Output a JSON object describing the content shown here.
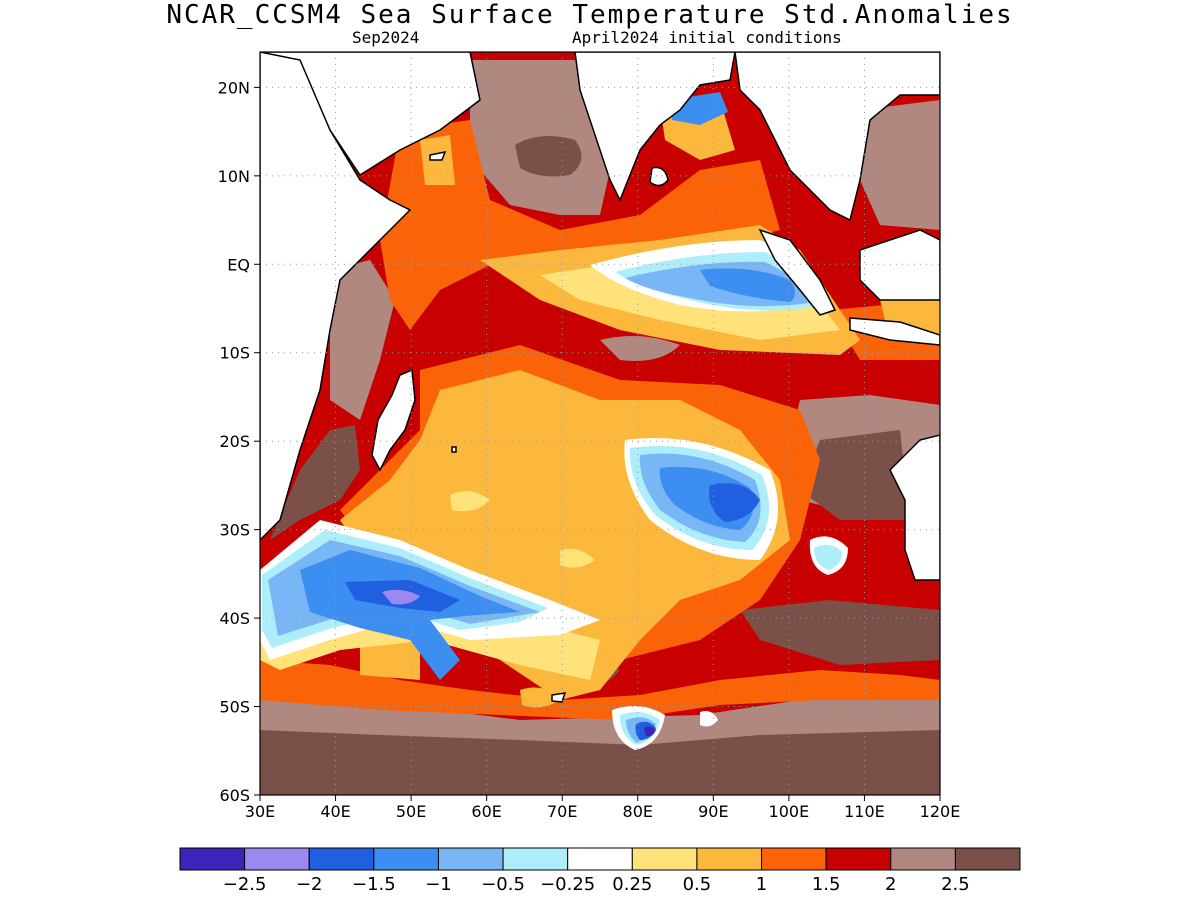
{
  "header": {
    "title": "NCAR_CCSM4 Sea Surface Temperature Std.Anomalies",
    "valid_month": "Sep2024",
    "init_conditions": "April2024 initial conditions"
  },
  "map": {
    "lon_range": [
      30,
      120
    ],
    "lat_range": [
      -60,
      24
    ],
    "lon_ticks": [
      "30E",
      "40E",
      "50E",
      "60E",
      "70E",
      "80E",
      "90E",
      "100E",
      "110E",
      "120E"
    ],
    "lat_ticks": [
      "20N",
      "10N",
      "EQ",
      "10S",
      "20S",
      "30S",
      "40S",
      "50S",
      "60S"
    ],
    "lat_tick_values": [
      20,
      10,
      0,
      -10,
      -20,
      -30,
      -40,
      -50,
      -60
    ],
    "lon_tick_values": [
      30,
      40,
      50,
      60,
      70,
      80,
      90,
      100,
      110,
      120
    ],
    "colors": {
      "land": "#ffffff",
      "coast": "#000000",
      "gridline": "#999999"
    }
  },
  "colorbar": {
    "colors": [
      "#3b25b8",
      "#9c89f0",
      "#1f5fe0",
      "#3c8ef0",
      "#78b6f6",
      "#aeeefa",
      "#ffffff",
      "#ffe27a",
      "#fcb83c",
      "#fa6308",
      "#c80000",
      "#b08880",
      "#7a5048"
    ],
    "labels": [
      "−2.5",
      "−2",
      "−1.5",
      "−1",
      "−0.5",
      "−0.25",
      "0.25",
      "0.5",
      "1",
      "1.5",
      "2",
      "2.5"
    ]
  }
}
